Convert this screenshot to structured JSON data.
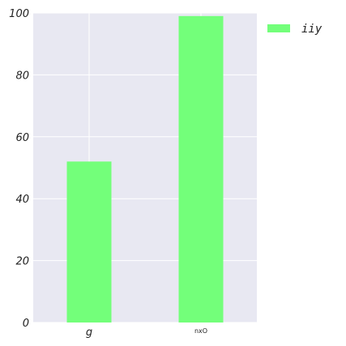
{
  "chart_data": {
    "type": "bar",
    "categories": [
      "g",
      "nxO"
    ],
    "series": [
      {
        "name": "iiy",
        "values": [
          52,
          99
        ]
      }
    ],
    "ylim": [
      0,
      100
    ],
    "y_ticks": [
      0,
      20,
      40,
      60,
      80,
      100
    ],
    "grid": true,
    "legend_position": "right",
    "colors": {
      "plot_background": "#e8e8f2",
      "grid": "#ffffff",
      "bar": "#73ff7a"
    },
    "title": "",
    "xlabel": "",
    "ylabel": ""
  }
}
